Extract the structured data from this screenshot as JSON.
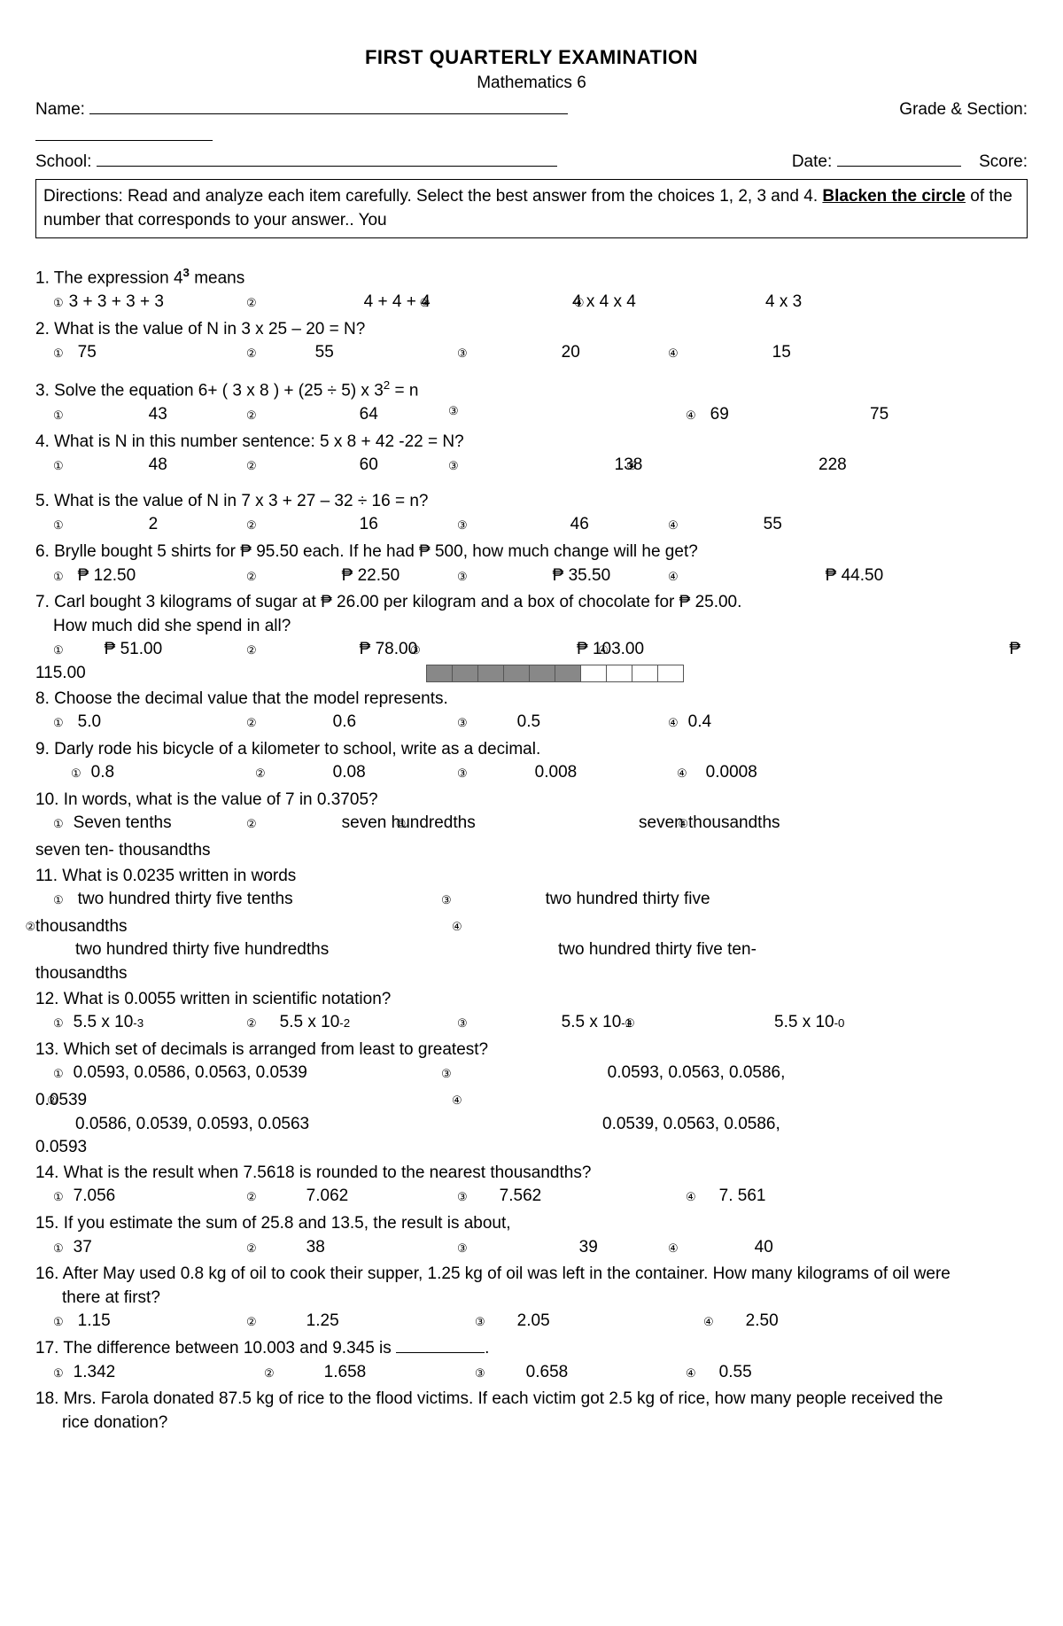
{
  "title": "FIRST QUARTERLY EXAMINATION",
  "subtitle": "Mathematics 6",
  "labels": {
    "name": "Name:",
    "grade_section": "Grade & Section:",
    "school": "School:",
    "date": "Date:",
    "score": "Score:"
  },
  "directions_prefix": "Directions: Read and analyze each item carefully. Select the best answer from the choices 1, 2, 3 and 4. ",
  "directions_bold": "Blacken the circle",
  "directions_suffix": " of the number that corresponds to your answer.. You",
  "circled": {
    "1": "①",
    "2": "②",
    "3": "③",
    "4": "④"
  },
  "q1": {
    "text_a": "1. The expression 4",
    "exp": "3",
    "text_b": " means",
    "c1": "3 + 3 + 3 + 3",
    "c2": "4 + 4 + 4",
    "c3": "4 x 4 x 4",
    "c4": "4 x 3"
  },
  "q2": {
    "text": "2. What is the value of N in 3 x 25 – 20 = N?",
    "c1": "75",
    "c2": "55",
    "c3": "20",
    "c4": "15"
  },
  "q3": {
    "text_a": "3. Solve the equation  6+ ( 3 x 8 ) + (25 ÷ 5) x 3",
    "exp": "2",
    "text_b": " = n",
    "c1": "43",
    "c2": "64",
    "c3": "69",
    "c4": "75"
  },
  "q4": {
    "text": "4. What is N in this number sentence: 5 x 8 + 42 -22 = N?",
    "c1": "48",
    "c2": "60",
    "c3": "138",
    "c4": "228"
  },
  "q5": {
    "text": "5. What is the value of N  in 7 x 3 + 27 – 32 ÷ 16 = n?",
    "c1": "2",
    "c2": "16",
    "c3": "46",
    "c4": "55"
  },
  "q6": {
    "text": "6. Brylle bought 5 shirts for  ₱ 95.50 each. If he had ₱ 500, how much change will he get?",
    "c1": "₱ 12.50",
    "c2": "₱ 22.50",
    "c3": "₱ 35.50",
    "c4": "₱ 44.50"
  },
  "q7": {
    "text1": "7. Carl bought 3 kilograms of sugar at ₱ 26.00 per kilogram and a box of chocolate for  ₱ 25.00.",
    "text2": "How much did she spend in all?",
    "c1": "₱ 51.00",
    "c2": "₱ 78.00",
    "c3": "₱ 103.00",
    "c4": "₱ 115.00"
  },
  "q8": {
    "text": "8.  Choose the decimal value that the model represents.",
    "c1": "5.0",
    "c2": "0.6",
    "c3": "0.5",
    "c4": "0.4",
    "model_filled": 6,
    "model_total": 10
  },
  "q9": {
    "text": "9.  Darly rode his bicycle  of a kilometer to school, write as a decimal.",
    "c1": "0.8",
    "c2": "0.08",
    "c3": "0.008",
    "c4": "0.0008"
  },
  "q10": {
    "text": "10. In words, what is the value of 7 in 0.3705?",
    "c1": "Seven tenths",
    "c2": "seven hundredths",
    "c3": "seven thousandths",
    "c4": "seven ten- thousandths"
  },
  "q11": {
    "text": "11. What is 0.0235 written in words",
    "c1": "two hundred thirty five tenths",
    "c2": "two hundred thirty five hundredths",
    "c3": "two hundred thirty five thousandths",
    "c4": "two hundred thirty five ten-thousandths"
  },
  "q12": {
    "text": "12. What is 0.0055 written in scientific notation?",
    "c1a": "5.5 x 10 ",
    "c1e": "-3",
    "c2a": "5.5 x 10 ",
    "c2e": "-2",
    "c3a": "5.5 x 10 ",
    "c3e": "-1",
    "c4a": "5.5 x 10 ",
    "c4e": "-0"
  },
  "q13": {
    "text": "13. Which set of decimals is arranged from least to greatest?",
    "c1": "0.0593,  0.0586, 0.0563,  0.0539",
    "c2": "0.0586,  0.0539, 0.0593, 0.0563",
    "c3": "0.0593, 0.0563, 0.0586, 0.0539",
    "c4": "0.0539, 0.0563, 0.0586, 0.0593"
  },
  "q14": {
    "text": "14. What is the result when 7.5618 is rounded to the nearest thousandths?",
    "c1": "7.056",
    "c2": "7.062",
    "c3": "7.562",
    "c4": "7. 561"
  },
  "q15": {
    "text": "15. If you estimate the sum of 25.8 and 13.5, the result is about,",
    "c1": "37",
    "c2": "38",
    "c3": "39",
    "c4": "40"
  },
  "q16": {
    "text1": "16. After May used 0.8 kg of oil to cook their supper, 1.25 kg of oil was left in the container. How many kilograms of oil were",
    "text2": "there at first?",
    "c1": "1.15",
    "c2": "1.25",
    "c3": "2.05",
    "c4": "2.50"
  },
  "q17": {
    "text_a": "17. The difference between 10.003 and 9.345 is ",
    "text_b": ".",
    "c1": "1.342",
    "c2": "1.658",
    "c3": "0.658",
    "c4": "0.55"
  },
  "q18": {
    "text1": "18. Mrs. Farola donated 87.5 kg of rice to the flood victims. If each victim got 2.5 kg of rice, how many people received the",
    "text2": "rice donation?"
  }
}
